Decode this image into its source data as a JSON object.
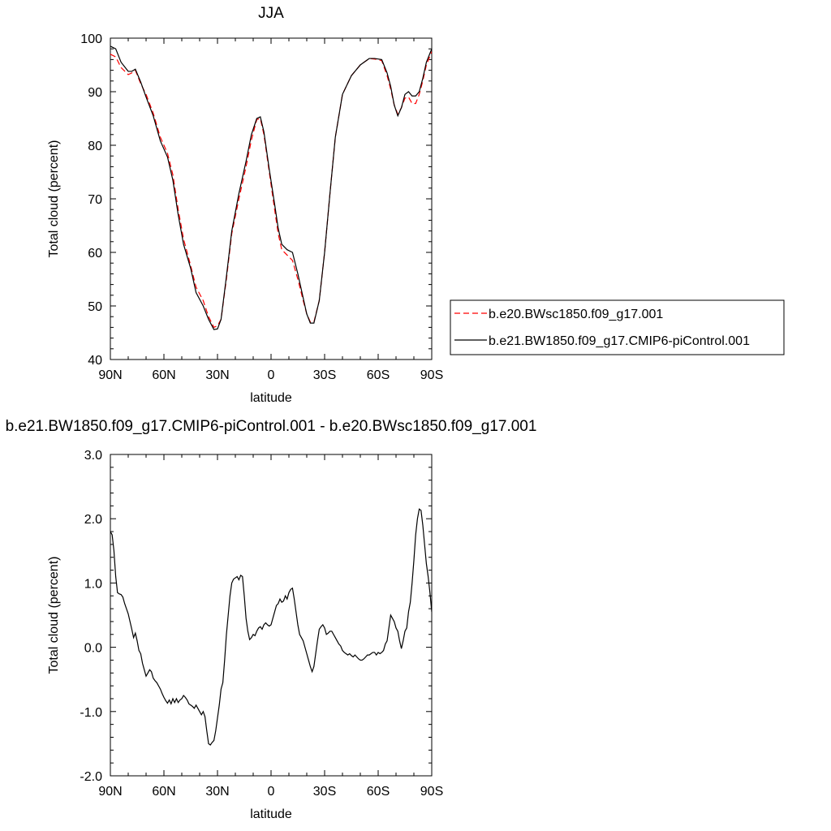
{
  "chart_data": [
    {
      "type": "line",
      "title": "JJA",
      "xlabel": "latitude",
      "ylabel": "Total cloud (percent)",
      "xlim": [
        -90,
        90
      ],
      "ylim": [
        40,
        100
      ],
      "x_tick_values": [
        -90,
        -60,
        -30,
        0,
        30,
        60,
        90
      ],
      "x_tick_labels": [
        "90N",
        "60N",
        "30N",
        "0",
        "30S",
        "60S",
        "90S"
      ],
      "y_ticks": [
        40,
        50,
        60,
        70,
        80,
        90,
        100
      ],
      "grid": false,
      "legend_position": "right",
      "series": [
        {
          "name": "b.e20.BWsc1850.f09_g17.001",
          "color": "#ff0000",
          "dash": true,
          "x": [
            -90,
            -87,
            -84,
            -80,
            -78,
            -76,
            -73,
            -70,
            -66,
            -62,
            -58,
            -55,
            -52,
            -49,
            -45,
            -42,
            -38,
            -35,
            -32,
            -30,
            -28,
            -25,
            -22,
            -18,
            -14,
            -11,
            -8,
            -6,
            -4,
            -1,
            2,
            4,
            6,
            9,
            12,
            15,
            18,
            20,
            22,
            24,
            27,
            30,
            33,
            36,
            40,
            45,
            50,
            55,
            58,
            62,
            65,
            67,
            69,
            71,
            73,
            75,
            77,
            79,
            81,
            83,
            85,
            87,
            90
          ],
          "y": [
            97.0,
            96.5,
            94.5,
            93.2,
            93.5,
            94.0,
            91.5,
            89.5,
            86.0,
            81.5,
            78.5,
            74.5,
            68.0,
            62.5,
            57.5,
            53.5,
            51.0,
            48.0,
            46.0,
            46.3,
            47.5,
            55.0,
            63.5,
            70.0,
            76.0,
            81.0,
            84.8,
            85.0,
            82.0,
            75.0,
            68.0,
            63.5,
            60.5,
            59.5,
            58.5,
            55.0,
            51.0,
            48.5,
            47.0,
            47.0,
            51.0,
            60.0,
            71.0,
            81.5,
            89.5,
            93.0,
            95.0,
            96.2,
            96.1,
            95.8,
            93.0,
            90.5,
            87.5,
            85.8,
            87.0,
            88.8,
            89.0,
            87.8,
            87.8,
            89.5,
            92.0,
            95.0,
            97.5
          ]
        },
        {
          "name": "b.e21.BW1850.f09_g17.CMIP6-piControl.001",
          "color": "#000000",
          "dash": false,
          "x": [
            -90,
            -87,
            -84,
            -80,
            -78,
            -76,
            -73,
            -70,
            -66,
            -62,
            -58,
            -55,
            -52,
            -49,
            -45,
            -42,
            -38,
            -35,
            -32,
            -30,
            -28,
            -25,
            -22,
            -18,
            -14,
            -11,
            -8,
            -6,
            -4,
            -1,
            2,
            4,
            6,
            9,
            12,
            15,
            18,
            20,
            22,
            24,
            27,
            30,
            33,
            36,
            40,
            45,
            50,
            55,
            58,
            62,
            65,
            67,
            69,
            71,
            73,
            75,
            77,
            79,
            81,
            83,
            85,
            87,
            90
          ],
          "y": [
            98.5,
            98.0,
            95.5,
            93.8,
            93.8,
            94.2,
            91.8,
            89.0,
            85.5,
            80.8,
            77.8,
            73.5,
            67.0,
            61.5,
            57.0,
            52.5,
            50.0,
            47.5,
            45.6,
            45.7,
            47.5,
            55.5,
            64.0,
            71.0,
            77.0,
            82.0,
            85.0,
            85.3,
            82.5,
            75.5,
            69.0,
            64.5,
            61.5,
            60.5,
            60.0,
            56.0,
            51.5,
            48.5,
            46.8,
            46.8,
            51.0,
            60.0,
            71.0,
            81.5,
            89.5,
            93.0,
            95.0,
            96.2,
            96.2,
            96.0,
            93.5,
            91.0,
            87.5,
            85.5,
            87.0,
            89.5,
            90.0,
            89.2,
            89.2,
            90.0,
            92.5,
            95.5,
            98.0
          ]
        }
      ]
    },
    {
      "type": "line",
      "title": "b.e21.BW1850.f09_g17.CMIP6-piControl.001 - b.e20.BWsc1850.f09_g17.001",
      "xlabel": "latitude",
      "ylabel": "Total cloud (percent)",
      "xlim": [
        -90,
        90
      ],
      "ylim": [
        -2.0,
        3.0
      ],
      "x_tick_values": [
        -90,
        -60,
        -30,
        0,
        30,
        60,
        90
      ],
      "x_tick_labels": [
        "90N",
        "60N",
        "30N",
        "0",
        "30S",
        "60S",
        "90S"
      ],
      "y_ticks": [
        -2.0,
        -1.0,
        0.0,
        1.0,
        2.0,
        3.0
      ],
      "y_tick_labels": [
        "-2.0",
        "-1.0",
        "0.0",
        "1.0",
        "2.0",
        "3.0"
      ],
      "grid": false,
      "series": [
        {
          "color": "#000000",
          "x": [
            -90,
            -89,
            -88,
            -87,
            -86,
            -85,
            -84,
            -83,
            -82,
            -81,
            -80,
            -79,
            -78,
            -77,
            -76,
            -75,
            -74,
            -73,
            -72,
            -71,
            -70,
            -69,
            -68,
            -67,
            -66,
            -65,
            -64,
            -63,
            -62,
            -61,
            -60,
            -59,
            -58,
            -57,
            -56,
            -55,
            -54,
            -53,
            -52,
            -51,
            -50,
            -49,
            -48,
            -47,
            -46,
            -45,
            -44,
            -43,
            -42,
            -41,
            -40,
            -39,
            -38,
            -37,
            -36,
            -35,
            -34,
            -33,
            -32,
            -31,
            -30,
            -29,
            -28,
            -27,
            -26,
            -25,
            -24,
            -23,
            -22,
            -21,
            -20,
            -19,
            -18,
            -17,
            -16,
            -15,
            -14,
            -13,
            -12,
            -11,
            -10,
            -9,
            -8,
            -7,
            -6,
            -5,
            -4,
            -3,
            -2,
            -1,
            0,
            1,
            2,
            3,
            4,
            5,
            6,
            7,
            8,
            9,
            10,
            11,
            12,
            13,
            14,
            15,
            16,
            17,
            18,
            19,
            20,
            21,
            22,
            23,
            24,
            25,
            26,
            27,
            28,
            29,
            30,
            31,
            32,
            33,
            34,
            35,
            36,
            37,
            38,
            39,
            40,
            41,
            42,
            43,
            44,
            45,
            46,
            47,
            48,
            49,
            50,
            51,
            52,
            53,
            54,
            55,
            56,
            57,
            58,
            59,
            60,
            61,
            62,
            63,
            64,
            65,
            66,
            67,
            68,
            69,
            70,
            71,
            72,
            73,
            74,
            75,
            76,
            77,
            78,
            79,
            80,
            81,
            82,
            83,
            84,
            85,
            86,
            87,
            88,
            89,
            90
          ],
          "y": [
            1.8,
            1.75,
            1.5,
            1.1,
            0.85,
            0.83,
            0.82,
            0.78,
            0.68,
            0.6,
            0.52,
            0.4,
            0.28,
            0.15,
            0.22,
            0.1,
            -0.05,
            -0.1,
            -0.25,
            -0.35,
            -0.45,
            -0.4,
            -0.35,
            -0.38,
            -0.48,
            -0.52,
            -0.55,
            -0.6,
            -0.65,
            -0.72,
            -0.78,
            -0.83,
            -0.87,
            -0.82,
            -0.88,
            -0.8,
            -0.86,
            -0.8,
            -0.86,
            -0.82,
            -0.8,
            -0.75,
            -0.78,
            -0.82,
            -0.88,
            -0.9,
            -0.92,
            -0.95,
            -0.9,
            -0.95,
            -1.0,
            -1.05,
            -1.0,
            -1.08,
            -1.3,
            -1.5,
            -1.52,
            -1.48,
            -1.45,
            -1.3,
            -1.1,
            -0.9,
            -0.65,
            -0.55,
            -0.2,
            0.2,
            0.5,
            0.8,
            1.0,
            1.06,
            1.08,
            1.1,
            1.05,
            1.12,
            1.1,
            0.8,
            0.45,
            0.25,
            0.12,
            0.15,
            0.2,
            0.18,
            0.25,
            0.3,
            0.32,
            0.28,
            0.35,
            0.38,
            0.35,
            0.33,
            0.35,
            0.45,
            0.55,
            0.65,
            0.68,
            0.75,
            0.7,
            0.72,
            0.8,
            0.75,
            0.85,
            0.9,
            0.92,
            0.75,
            0.55,
            0.35,
            0.2,
            0.15,
            0.1,
            0.0,
            -0.1,
            -0.2,
            -0.3,
            -0.38,
            -0.3,
            -0.1,
            0.1,
            0.28,
            0.32,
            0.35,
            0.3,
            0.2,
            0.22,
            0.25,
            0.25,
            0.2,
            0.15,
            0.1,
            0.05,
            0.02,
            -0.05,
            -0.08,
            -0.1,
            -0.12,
            -0.1,
            -0.13,
            -0.15,
            -0.12,
            -0.15,
            -0.18,
            -0.2,
            -0.2,
            -0.18,
            -0.15,
            -0.12,
            -0.12,
            -0.1,
            -0.08,
            -0.08,
            -0.12,
            -0.08,
            -0.1,
            -0.08,
            -0.05,
            0.05,
            0.1,
            0.3,
            0.5,
            0.45,
            0.4,
            0.3,
            0.25,
            0.1,
            -0.02,
            0.1,
            0.25,
            0.3,
            0.55,
            0.7,
            1.0,
            1.35,
            1.75,
            2.0,
            2.15,
            2.13,
            1.9,
            1.6,
            1.3,
            1.1,
            0.85,
            0.55
          ]
        }
      ]
    }
  ]
}
